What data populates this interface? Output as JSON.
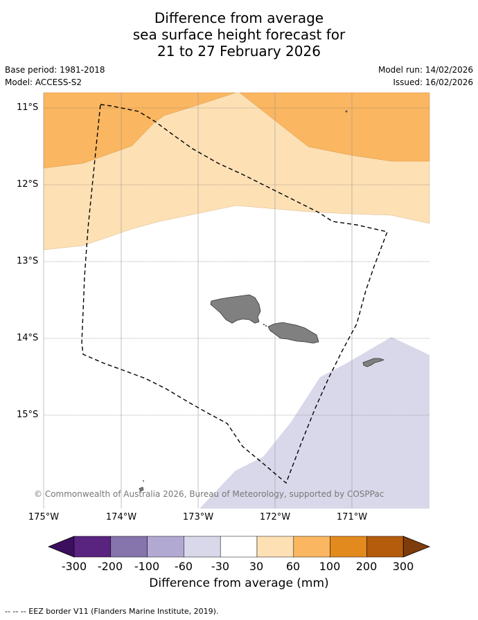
{
  "title": {
    "line1": "Difference from average",
    "line2": "sea surface height forecast for",
    "line3": "21 to 27 February 2026"
  },
  "meta": {
    "base_period": "Base period: 1981-2018",
    "model": "Model: ACCESS-S2",
    "model_run": "Model run: 14/02/2026",
    "issued": "Issued: 16/02/2026"
  },
  "map": {
    "lat_labels": [
      "11°S",
      "12°S",
      "13°S",
      "14°S",
      "15°S"
    ],
    "lon_labels": [
      "175°W",
      "174°W",
      "173°W",
      "172°W",
      "171°W"
    ],
    "credit": "© Commonwealth of Australia 2026, Bureau of Meteorology, supported by COSPPac",
    "colors": {
      "band_60_100": "#fab660",
      "band_30_60": "#fde0b4",
      "band_neg60_neg30": "#d8d8ea",
      "land": "#808080",
      "eez": "#000000"
    }
  },
  "colorbar": {
    "title": "Difference from average (mm)",
    "tick_labels": [
      "-300",
      "-200",
      "-100",
      "-60",
      "-30",
      "30",
      "60",
      "100",
      "200",
      "300"
    ],
    "colors": [
      "#3b0f5e",
      "#58247f",
      "#8674ad",
      "#b2a9d2",
      "#d8d8ea",
      "#ffffff",
      "#fde0b4",
      "#fab660",
      "#e28a1e",
      "#b45c0c",
      "#7e3c0a"
    ]
  },
  "footer": {
    "legend": "--  --  -- EEZ border V11 (Flanders Marine Institute, 2019)."
  }
}
